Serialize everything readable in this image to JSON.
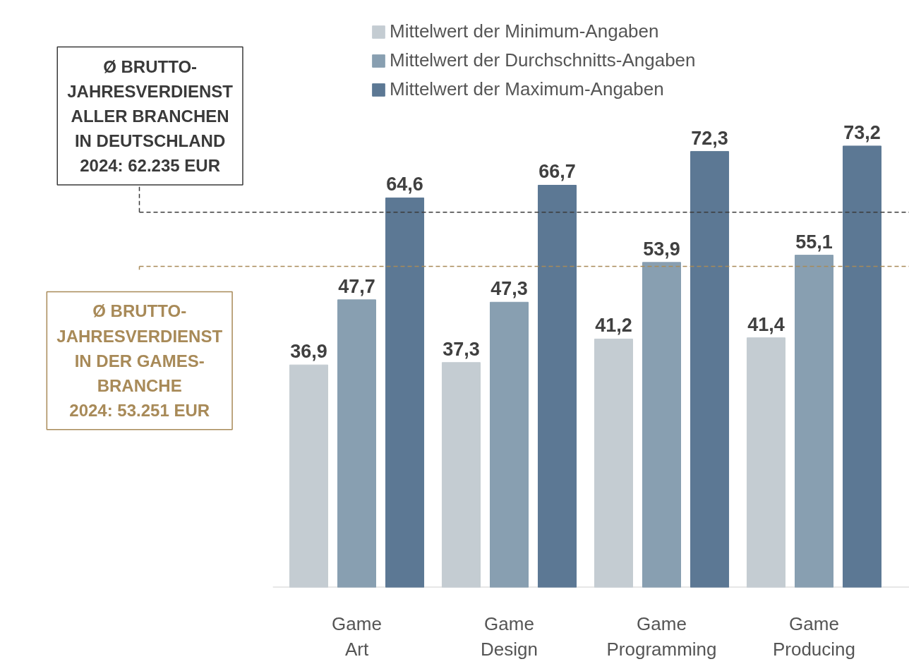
{
  "chart_data": {
    "type": "bar",
    "categories": [
      "Game\nArt",
      "Game\nDesign",
      "Game\nProgramming",
      "Game\nProducing"
    ],
    "series": [
      {
        "name": "Mittelwert der Minimum-Angaben",
        "color": "#c4ccd2",
        "values": [
          36.9,
          37.3,
          41.2,
          41.4
        ],
        "value_labels": [
          "36,9",
          "37,3",
          "41,2",
          "41,4"
        ]
      },
      {
        "name": "Mittelwert der Durchschnitts-Angaben",
        "color": "#889fb1",
        "values": [
          47.7,
          47.3,
          53.9,
          55.1
        ],
        "value_labels": [
          "47,7",
          "47,3",
          "53,9",
          "55,1"
        ]
      },
      {
        "name": "Mittelwert der Maximum-Angaben",
        "color": "#5c7894",
        "values": [
          64.6,
          66.7,
          72.3,
          73.2
        ],
        "value_labels": [
          "64,6",
          "66,7",
          "72,3",
          "73,2"
        ]
      }
    ],
    "ref_lines": [
      {
        "axis": "y",
        "value": 62.235,
        "label": "Ø BRUTTO-\nJAHRESVERDIENST\nALLER BRANCHEN\nIN DEUTSCHLAND\n2024: 62.235 EUR",
        "color": "#3a3a3a",
        "line_style": "dashed"
      },
      {
        "axis": "y",
        "value": 53.251,
        "label": "Ø BRUTTO-\nJAHRESVERDIENST\nIN DER GAMES-\nBRANCHE\n2024: 53.251 EUR",
        "color": "#a88a58",
        "line_style": "dashed"
      }
    ],
    "grid": false,
    "legend": "top"
  }
}
